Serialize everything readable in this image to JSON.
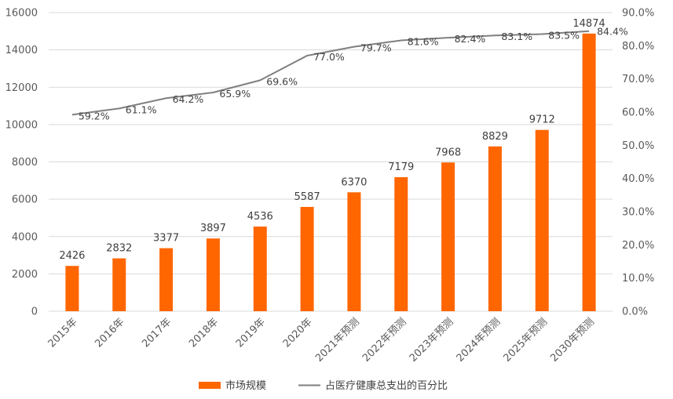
{
  "chart_data": {
    "type": "bar+line",
    "categories": [
      "2015年",
      "2016年",
      "2017年",
      "2018年",
      "2019年",
      "2020年",
      "2021年预测",
      "2022年预测",
      "2023年预测",
      "2024年预测",
      "2025年预测",
      "2030年预测"
    ],
    "series": [
      {
        "name": "市场规模",
        "type": "bar",
        "axis": "left",
        "values": [
          2426,
          2832,
          3377,
          3897,
          4536,
          5587,
          6370,
          7179,
          7968,
          8829,
          9712,
          14874
        ],
        "labels": [
          "2426",
          "2832",
          "3377",
          "3897",
          "4536",
          "5587",
          "6370",
          "7179",
          "7968",
          "8829",
          "9712",
          "14874"
        ]
      },
      {
        "name": "占医疗健康总支出的百分比",
        "type": "line",
        "axis": "right",
        "values": [
          59.2,
          61.1,
          64.2,
          65.9,
          69.6,
          77.0,
          79.7,
          81.6,
          82.4,
          83.1,
          83.5,
          84.4
        ],
        "labels": [
          "59.2%",
          "61.1%",
          "64.2%",
          "65.9%",
          "69.6%",
          "77.0%",
          "79.7%",
          "81.6%",
          "82.4%",
          "83.1%",
          "83.5%",
          "84.4%"
        ]
      }
    ],
    "y_left": {
      "min": 0,
      "max": 16000,
      "ticks": [
        0,
        2000,
        4000,
        6000,
        8000,
        10000,
        12000,
        14000,
        16000
      ],
      "tick_labels": [
        "0",
        "2000",
        "4000",
        "6000",
        "8000",
        "10000",
        "12000",
        "14000",
        "16000"
      ]
    },
    "y_right": {
      "min": 0,
      "max": 90,
      "ticks": [
        0,
        10,
        20,
        30,
        40,
        50,
        60,
        70,
        80,
        90
      ],
      "tick_labels": [
        "0.0%",
        "10.0%",
        "20.0%",
        "30.0%",
        "40.0%",
        "50.0%",
        "60.0%",
        "70.0%",
        "80.0%",
        "90.0%"
      ]
    },
    "grid": true,
    "legend_position": "bottom",
    "colors": {
      "bar": "#FF6600",
      "line": "#7F7F7F",
      "grid": "#D9D9D9"
    }
  },
  "legend": {
    "bar_label": "市场规模",
    "line_label": "占医疗健康总支出的百分比"
  }
}
